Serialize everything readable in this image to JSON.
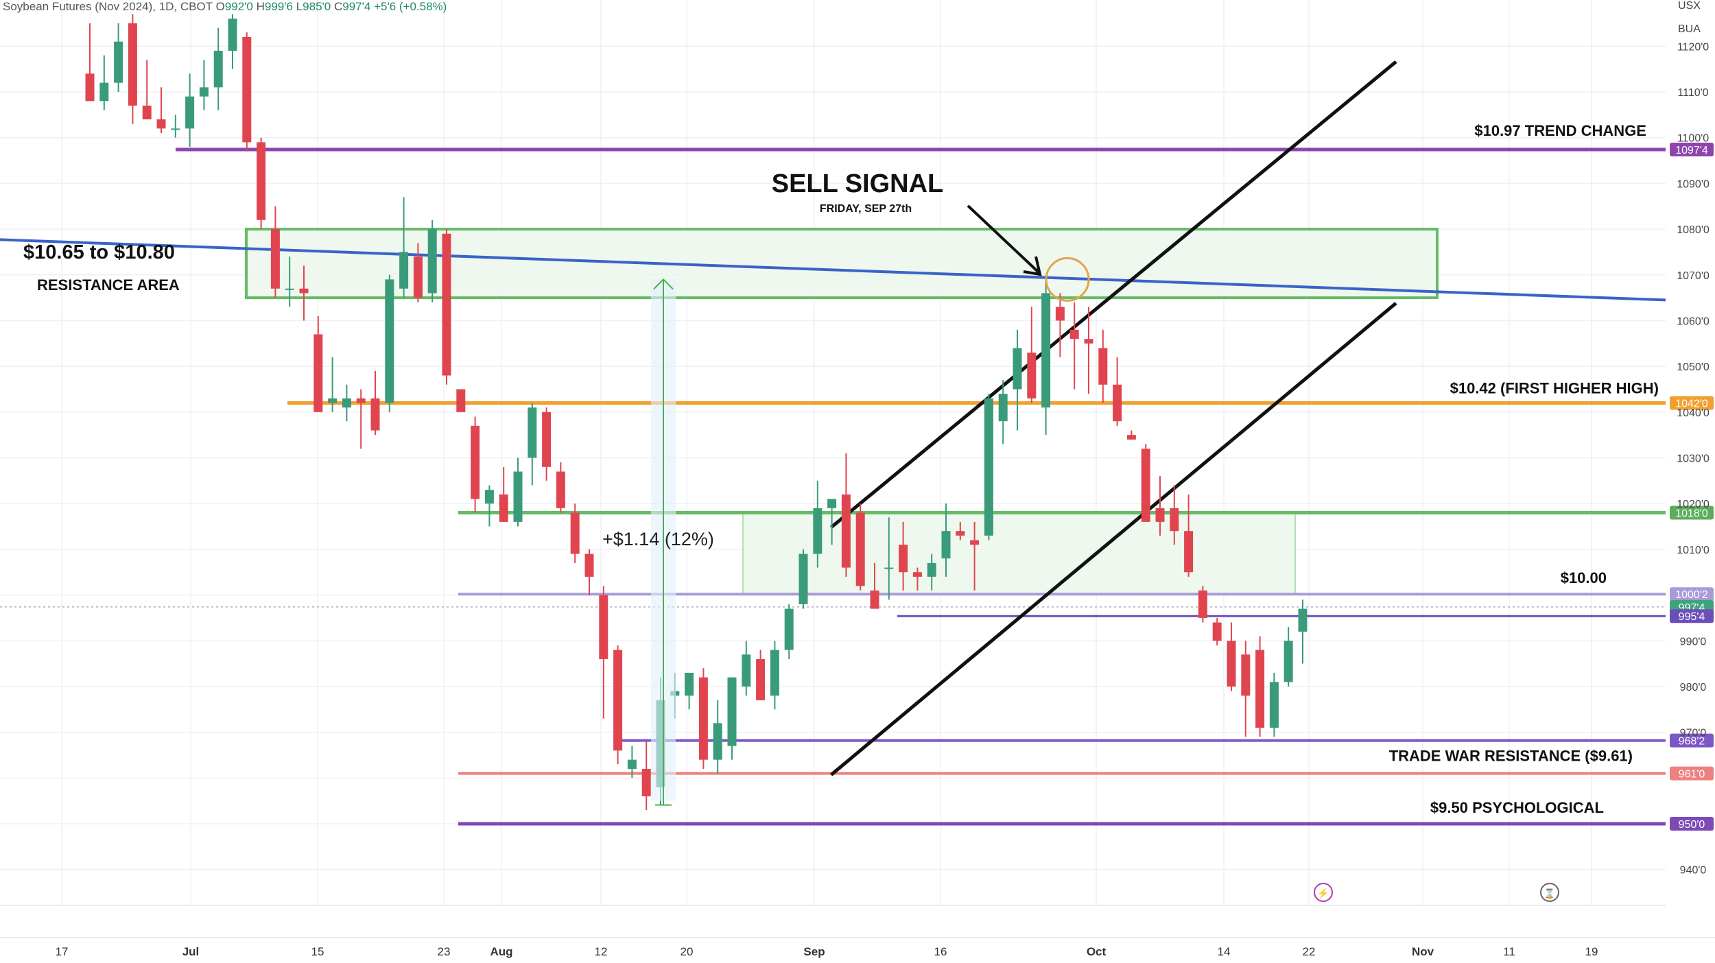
{
  "header": {
    "symbol": "Soybean Futures (Nov 2024), 1D, CBOT",
    "o_label": "O",
    "o": "992'0",
    "h_label": "H",
    "h": "999'6",
    "l_label": "L",
    "l": "985'0",
    "c_label": "C",
    "c": "997'4",
    "change": "+5'6 (+0.58%)"
  },
  "top_right": {
    "currency": "USX",
    "unit": "BUA"
  },
  "colors": {
    "up": "#3a9b7a",
    "down": "#e0454f",
    "purple": "#8e44ad",
    "orange": "#f0a030",
    "green_box": "#66bb66",
    "blue_trend": "#3a63c9",
    "lavender": "#a99bd8",
    "salmon": "#ee8080",
    "current": "#3fa37c"
  },
  "chart_data": {
    "type": "candlestick",
    "title": "Soybean Futures (Nov 2024), 1D, CBOT",
    "y_unit": "cents/bu",
    "ylim": [
      933,
      1125
    ],
    "y_ticks": [
      "940'0",
      "950'0",
      "960'0",
      "970'0",
      "980'0",
      "990'0",
      "1000'0",
      "1010'0",
      "1020'0",
      "1030'0",
      "1040'0",
      "1050'0",
      "1060'0",
      "1070'0",
      "1080'0",
      "1090'0",
      "1100'0",
      "1110'0",
      "1120'0"
    ],
    "x_ticks": [
      "17",
      "Jul",
      "15",
      "23",
      "Aug",
      "12",
      "20",
      "Sep",
      "16",
      "Oct",
      "14",
      "22",
      "Nov",
      "11",
      "19"
    ],
    "candles": [
      {
        "o": 1114,
        "h": 1125,
        "l": 1108,
        "c": 1108
      },
      {
        "o": 1108,
        "h": 1118,
        "l": 1106,
        "c": 1112
      },
      {
        "o": 1112,
        "h": 1125,
        "l": 1110,
        "c": 1121
      },
      {
        "o": 1125,
        "h": 1127,
        "l": 1103,
        "c": 1107
      },
      {
        "o": 1107,
        "h": 1117,
        "l": 1104,
        "c": 1104
      },
      {
        "o": 1104,
        "h": 1111,
        "l": 1101,
        "c": 1102
      },
      {
        "o": 1102,
        "h": 1105,
        "l": 1100,
        "c": 1102
      },
      {
        "o": 1102,
        "h": 1114,
        "l": 1098,
        "c": 1109
      },
      {
        "o": 1109,
        "h": 1117,
        "l": 1106,
        "c": 1111
      },
      {
        "o": 1111,
        "h": 1124,
        "l": 1106,
        "c": 1119
      },
      {
        "o": 1119,
        "h": 1127,
        "l": 1115,
        "c": 1126
      },
      {
        "o": 1122,
        "h": 1123,
        "l": 1097,
        "c": 1099
      },
      {
        "o": 1099,
        "h": 1100,
        "l": 1080,
        "c": 1082
      },
      {
        "o": 1080,
        "h": 1085,
        "l": 1065,
        "c": 1067
      },
      {
        "o": 1067,
        "h": 1074,
        "l": 1063,
        "c": 1067
      },
      {
        "o": 1067,
        "h": 1072,
        "l": 1060,
        "c": 1066
      },
      {
        "o": 1057,
        "h": 1061,
        "l": 1040,
        "c": 1040
      },
      {
        "o": 1042,
        "h": 1052,
        "l": 1040,
        "c": 1043
      },
      {
        "o": 1041,
        "h": 1046,
        "l": 1038,
        "c": 1043
      },
      {
        "o": 1043,
        "h": 1045,
        "l": 1032,
        "c": 1042
      },
      {
        "o": 1043,
        "h": 1049,
        "l": 1035,
        "c": 1036
      },
      {
        "o": 1042,
        "h": 1070,
        "l": 1040,
        "c": 1069
      },
      {
        "o": 1067,
        "h": 1087,
        "l": 1065,
        "c": 1075
      },
      {
        "o": 1074,
        "h": 1077,
        "l": 1064,
        "c": 1065
      },
      {
        "o": 1066,
        "h": 1082,
        "l": 1064,
        "c": 1080
      },
      {
        "o": 1079,
        "h": 1080,
        "l": 1046,
        "c": 1048
      },
      {
        "o": 1045,
        "h": 1045,
        "l": 1040,
        "c": 1040
      },
      {
        "o": 1037,
        "h": 1039,
        "l": 1018,
        "c": 1021
      },
      {
        "o": 1020,
        "h": 1024,
        "l": 1015,
        "c": 1023
      },
      {
        "o": 1022,
        "h": 1028,
        "l": 1016,
        "c": 1016
      },
      {
        "o": 1016,
        "h": 1030,
        "l": 1015,
        "c": 1027
      },
      {
        "o": 1030,
        "h": 1042,
        "l": 1024,
        "c": 1041
      },
      {
        "o": 1040,
        "h": 1041,
        "l": 1025,
        "c": 1028
      },
      {
        "o": 1027,
        "h": 1029,
        "l": 1018,
        "c": 1019
      },
      {
        "o": 1018,
        "h": 1020,
        "l": 1007,
        "c": 1009
      },
      {
        "o": 1009,
        "h": 1010,
        "l": 1000,
        "c": 1004
      },
      {
        "o": 1000,
        "h": 1002,
        "l": 973,
        "c": 986
      },
      {
        "o": 988,
        "h": 989,
        "l": 963,
        "c": 966
      },
      {
        "o": 962,
        "h": 967,
        "l": 960,
        "c": 964
      },
      {
        "o": 962,
        "h": 968,
        "l": 953,
        "c": 956
      },
      {
        "o": 958,
        "h": 982,
        "l": 954,
        "c": 977
      },
      {
        "o": 978,
        "h": 983,
        "l": 973,
        "c": 979
      },
      {
        "o": 978,
        "h": 983,
        "l": 975,
        "c": 983
      },
      {
        "o": 982,
        "h": 984,
        "l": 962,
        "c": 964
      },
      {
        "o": 964,
        "h": 977,
        "l": 961,
        "c": 972
      },
      {
        "o": 967,
        "h": 982,
        "l": 964,
        "c": 982
      },
      {
        "o": 980,
        "h": 990,
        "l": 978,
        "c": 987
      },
      {
        "o": 986,
        "h": 988,
        "l": 977,
        "c": 977
      },
      {
        "o": 978,
        "h": 990,
        "l": 975,
        "c": 988
      },
      {
        "o": 988,
        "h": 998,
        "l": 986,
        "c": 997
      },
      {
        "o": 998,
        "h": 1010,
        "l": 997,
        "c": 1009
      },
      {
        "o": 1009,
        "h": 1025,
        "l": 1006,
        "c": 1019
      },
      {
        "o": 1019,
        "h": 1021,
        "l": 1011,
        "c": 1021
      },
      {
        "o": 1022,
        "h": 1031,
        "l": 1004,
        "c": 1006
      },
      {
        "o": 1018,
        "h": 1020,
        "l": 1001,
        "c": 1002
      },
      {
        "o": 1001,
        "h": 1007,
        "l": 997,
        "c": 997
      },
      {
        "o": 1006,
        "h": 1017,
        "l": 999,
        "c": 1006
      },
      {
        "o": 1011,
        "h": 1016,
        "l": 1001,
        "c": 1005
      },
      {
        "o": 1005,
        "h": 1006,
        "l": 1001,
        "c": 1004
      },
      {
        "o": 1004,
        "h": 1009,
        "l": 1001,
        "c": 1007
      },
      {
        "o": 1008,
        "h": 1020,
        "l": 1004,
        "c": 1014
      },
      {
        "o": 1014,
        "h": 1016,
        "l": 1012,
        "c": 1013
      },
      {
        "o": 1012,
        "h": 1016,
        "l": 1001,
        "c": 1011
      },
      {
        "o": 1013,
        "h": 1044,
        "l": 1012,
        "c": 1043
      },
      {
        "o": 1038,
        "h": 1047,
        "l": 1033,
        "c": 1044
      },
      {
        "o": 1045,
        "h": 1058,
        "l": 1036,
        "c": 1054
      },
      {
        "o": 1053,
        "h": 1063,
        "l": 1042,
        "c": 1043
      },
      {
        "o": 1041,
        "h": 1070,
        "l": 1035,
        "c": 1066
      },
      {
        "o": 1063,
        "h": 1066,
        "l": 1052,
        "c": 1060
      },
      {
        "o": 1058,
        "h": 1064,
        "l": 1045,
        "c": 1056
      },
      {
        "o": 1056,
        "h": 1063,
        "l": 1044,
        "c": 1055
      },
      {
        "o": 1054,
        "h": 1058,
        "l": 1042,
        "c": 1046
      },
      {
        "o": 1046,
        "h": 1052,
        "l": 1037,
        "c": 1038
      },
      {
        "o": 1035,
        "h": 1036,
        "l": 1034,
        "c": 1034
      },
      {
        "o": 1032,
        "h": 1033,
        "l": 1016,
        "c": 1016
      },
      {
        "o": 1019,
        "h": 1026,
        "l": 1013,
        "c": 1016
      },
      {
        "o": 1019,
        "h": 1024,
        "l": 1011,
        "c": 1014
      },
      {
        "o": 1014,
        "h": 1022,
        "l": 1004,
        "c": 1005
      },
      {
        "o": 1001,
        "h": 1002,
        "l": 994,
        "c": 995
      },
      {
        "o": 994,
        "h": 995,
        "l": 989,
        "c": 990
      },
      {
        "o": 990,
        "h": 994,
        "l": 979,
        "c": 980
      },
      {
        "o": 987,
        "h": 990,
        "l": 969,
        "c": 978
      },
      {
        "o": 988,
        "h": 991,
        "l": 969,
        "c": 971
      },
      {
        "o": 971,
        "h": 983,
        "l": 969,
        "c": 981
      },
      {
        "o": 981,
        "h": 993,
        "l": 980,
        "c": 990
      },
      {
        "o": 992,
        "h": 999,
        "l": 985,
        "c": 997
      }
    ],
    "horizontal_levels": [
      {
        "value": 1097.4,
        "tag": "1097'4",
        "label": "$10.97 TREND CHANGE"
      },
      {
        "value": 1042,
        "tag": "1042'0",
        "label": "$10.42 (FIRST HIGHER HIGH)"
      },
      {
        "value": 1018,
        "tag": "1018'0",
        "label": ""
      },
      {
        "value": 1000.2,
        "tag": "1000'2",
        "label": "$10.00"
      },
      {
        "value": 997.4,
        "tag": "997'4",
        "label": ""
      },
      {
        "value": 995.4,
        "tag": "995'4",
        "label": ""
      },
      {
        "value": 968.2,
        "tag": "968'2",
        "label": "TRADE WAR RESISTANCE ($9.61)"
      },
      {
        "value": 961,
        "tag": "961'0",
        "label": ""
      },
      {
        "value": 950,
        "tag": "950'0",
        "label": "$9.50 PSYCHOLOGICAL"
      }
    ],
    "resistance_zone": {
      "low": 1065,
      "high": 1080,
      "label_1": "$10.65 to $10.80",
      "label_2": "RESISTANCE AREA"
    },
    "support_zone": {
      "low": 1000.2,
      "high": 1018
    },
    "measure": {
      "from": 955,
      "to": 1069,
      "label": "+$1.14 (12%)"
    },
    "sell_signal": {
      "title": "SELL SIGNAL",
      "subtitle": "FRIDAY, SEP 27th",
      "price": 1069
    },
    "channel": {
      "upper": [
        {
          "c": 27,
          "v": 1013
        },
        {
          "c": 60,
          "v": 1110
        }
      ],
      "lower": [
        {
          "c": 27,
          "v": 961
        },
        {
          "c": 60,
          "v": 1063
        }
      ]
    },
    "trendline": [
      {
        "c": -3,
        "v": 1078
      },
      {
        "c": 70,
        "v": 1066
      }
    ]
  }
}
